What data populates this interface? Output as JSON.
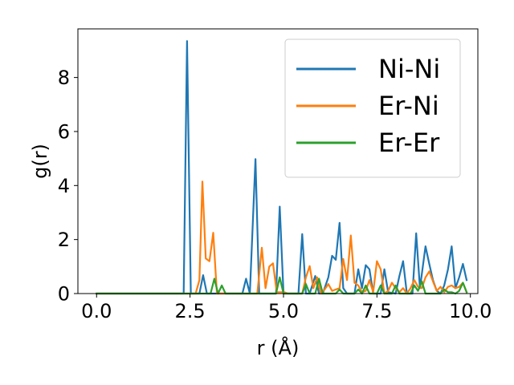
{
  "chart_data": {
    "type": "line",
    "xlabel": "r (Å)",
    "ylabel": "g(r)",
    "xlim": [
      -0.5,
      10.2
    ],
    "ylim": [
      0,
      9.8
    ],
    "xticks": [
      0.0,
      2.5,
      5.0,
      7.5,
      10.0
    ],
    "xtick_labels": [
      "0.0",
      "2.5",
      "5.0",
      "7.5",
      "10.0"
    ],
    "yticks": [
      0,
      2,
      4,
      6,
      8
    ],
    "ytick_labels": [
      "0",
      "2",
      "4",
      "6",
      "8"
    ],
    "grid": false,
    "legend_position": "top-right",
    "series": [
      {
        "name": "Ni-Ni",
        "color": "#1f77b4",
        "points": [
          [
            0.0,
            0
          ],
          [
            2.25,
            0
          ],
          [
            2.33,
            0
          ],
          [
            2.42,
            9.35
          ],
          [
            2.52,
            0
          ],
          [
            2.75,
            0
          ],
          [
            2.85,
            0.68
          ],
          [
            2.95,
            0
          ],
          [
            3.9,
            0
          ],
          [
            4.0,
            0.55
          ],
          [
            4.1,
            0
          ],
          [
            4.25,
            4.98
          ],
          [
            4.35,
            0
          ],
          [
            4.8,
            0
          ],
          [
            4.9,
            3.22
          ],
          [
            5.0,
            0
          ],
          [
            5.4,
            0
          ],
          [
            5.5,
            2.2
          ],
          [
            5.6,
            0
          ],
          [
            5.7,
            0
          ],
          [
            5.85,
            0.65
          ],
          [
            5.95,
            0
          ],
          [
            6.05,
            0
          ],
          [
            6.2,
            0.6
          ],
          [
            6.3,
            1.4
          ],
          [
            6.4,
            1.25
          ],
          [
            6.5,
            2.62
          ],
          [
            6.6,
            0.2
          ],
          [
            6.7,
            0
          ],
          [
            6.9,
            0
          ],
          [
            7.0,
            0.9
          ],
          [
            7.1,
            0.2
          ],
          [
            7.2,
            1.05
          ],
          [
            7.3,
            0.9
          ],
          [
            7.4,
            0
          ],
          [
            7.6,
            0
          ],
          [
            7.7,
            0.9
          ],
          [
            7.8,
            0.05
          ],
          [
            8.0,
            0
          ],
          [
            8.1,
            0.65
          ],
          [
            8.2,
            1.2
          ],
          [
            8.3,
            0
          ],
          [
            8.45,
            0
          ],
          [
            8.55,
            2.23
          ],
          [
            8.65,
            0.2
          ],
          [
            8.8,
            1.75
          ],
          [
            8.9,
            1.1
          ],
          [
            9.0,
            0.5
          ],
          [
            9.1,
            0.1
          ],
          [
            9.2,
            0
          ],
          [
            9.3,
            0.3
          ],
          [
            9.4,
            0.9
          ],
          [
            9.5,
            1.75
          ],
          [
            9.6,
            0.2
          ],
          [
            9.7,
            0.6
          ],
          [
            9.8,
            1.1
          ],
          [
            9.9,
            0.5
          ]
        ]
      },
      {
        "name": "Er-Ni",
        "color": "#ff7f0e",
        "points": [
          [
            0.0,
            0
          ],
          [
            2.65,
            0
          ],
          [
            2.75,
            0.5
          ],
          [
            2.83,
            4.15
          ],
          [
            2.92,
            1.3
          ],
          [
            3.02,
            1.2
          ],
          [
            3.12,
            2.25
          ],
          [
            3.22,
            0
          ],
          [
            4.3,
            0
          ],
          [
            4.42,
            1.7
          ],
          [
            4.52,
            0.2
          ],
          [
            4.62,
            1.0
          ],
          [
            4.72,
            1.12
          ],
          [
            4.82,
            0.05
          ],
          [
            4.92,
            0.05
          ],
          [
            5.02,
            0.05
          ],
          [
            5.12,
            0
          ],
          [
            5.5,
            0
          ],
          [
            5.6,
            0.6
          ],
          [
            5.7,
            1.02
          ],
          [
            5.8,
            0.2
          ],
          [
            5.9,
            0.6
          ],
          [
            6.0,
            0
          ],
          [
            6.1,
            0.15
          ],
          [
            6.2,
            0.35
          ],
          [
            6.3,
            0.1
          ],
          [
            6.4,
            0.15
          ],
          [
            6.5,
            0.2
          ],
          [
            6.6,
            1.28
          ],
          [
            6.7,
            0.5
          ],
          [
            6.8,
            2.15
          ],
          [
            6.9,
            0.4
          ],
          [
            7.0,
            0.3
          ],
          [
            7.1,
            0.05
          ],
          [
            7.2,
            0.1
          ],
          [
            7.3,
            0.5
          ],
          [
            7.4,
            0.05
          ],
          [
            7.5,
            1.2
          ],
          [
            7.6,
            0.9
          ],
          [
            7.7,
            0
          ],
          [
            7.8,
            0.1
          ],
          [
            7.9,
            0.4
          ],
          [
            8.0,
            0.2
          ],
          [
            8.1,
            0.05
          ],
          [
            8.2,
            0.2
          ],
          [
            8.3,
            0
          ],
          [
            8.4,
            0.2
          ],
          [
            8.5,
            0.5
          ],
          [
            8.6,
            0.25
          ],
          [
            8.7,
            0.2
          ],
          [
            8.8,
            0.6
          ],
          [
            8.9,
            0.82
          ],
          [
            9.0,
            0.45
          ],
          [
            9.1,
            0.1
          ],
          [
            9.2,
            0.25
          ],
          [
            9.3,
            0.05
          ],
          [
            9.4,
            0.25
          ],
          [
            9.5,
            0.3
          ],
          [
            9.6,
            0.2
          ],
          [
            9.7,
            0.25
          ],
          [
            9.8,
            0.4
          ],
          [
            9.9,
            0.05
          ]
        ]
      },
      {
        "name": "Er-Er",
        "color": "#2ca02c",
        "points": [
          [
            0.0,
            0
          ],
          [
            3.05,
            0
          ],
          [
            3.15,
            0.55
          ],
          [
            3.25,
            0
          ],
          [
            3.35,
            0.3
          ],
          [
            3.45,
            0
          ],
          [
            4.8,
            0
          ],
          [
            4.9,
            0.6
          ],
          [
            5.0,
            0
          ],
          [
            5.5,
            0
          ],
          [
            5.6,
            0.35
          ],
          [
            5.7,
            0
          ],
          [
            5.85,
            0
          ],
          [
            5.95,
            0.55
          ],
          [
            6.05,
            0
          ],
          [
            6.4,
            0
          ],
          [
            6.5,
            0.15
          ],
          [
            6.6,
            0
          ],
          [
            6.9,
            0
          ],
          [
            7.0,
            0.15
          ],
          [
            7.1,
            0
          ],
          [
            7.2,
            0.3
          ],
          [
            7.3,
            0
          ],
          [
            7.5,
            0
          ],
          [
            7.6,
            0.3
          ],
          [
            7.7,
            0
          ],
          [
            7.9,
            0
          ],
          [
            8.0,
            0.3
          ],
          [
            8.1,
            0
          ],
          [
            8.4,
            0
          ],
          [
            8.5,
            0.3
          ],
          [
            8.6,
            0.1
          ],
          [
            8.7,
            0.45
          ],
          [
            8.8,
            0
          ],
          [
            9.2,
            0
          ],
          [
            9.3,
            0.15
          ],
          [
            9.4,
            0.05
          ],
          [
            9.5,
            0.05
          ],
          [
            9.6,
            0
          ],
          [
            9.7,
            0.1
          ],
          [
            9.8,
            0.4
          ],
          [
            9.9,
            0.05
          ]
        ]
      }
    ]
  }
}
